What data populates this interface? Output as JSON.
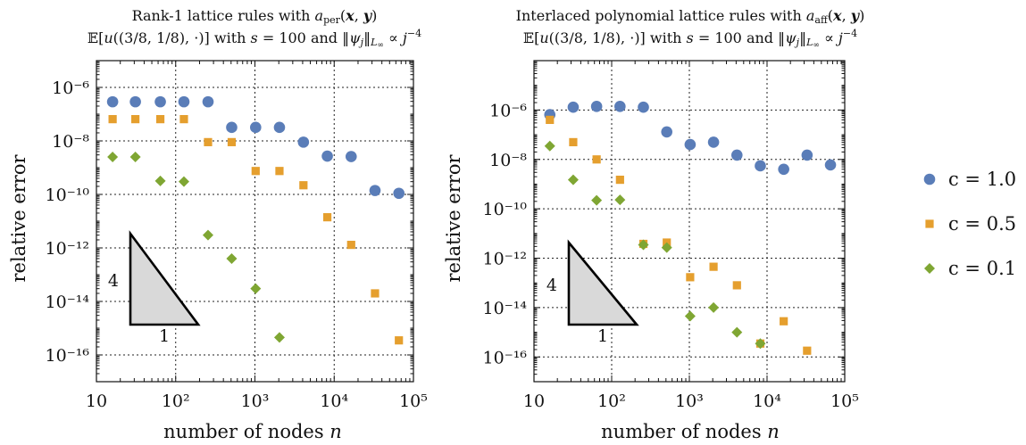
{
  "chart_data": [
    {
      "type": "scatter",
      "title": "Rank-1 lattice rules with a_per(x, y)",
      "subtitle": "E[u((3/8, 1/8), ·)] with s = 100 and ‖ψ_j‖_L∞ ∝ j^-4",
      "xlabel": "number of nodes n",
      "ylabel": "relative error",
      "x_scale": "log",
      "y_scale": "log",
      "xlim": [
        10,
        100000
      ],
      "ylim": [
        1e-17,
        1e-05
      ],
      "x_ticks": [
        10,
        100,
        1000,
        10000,
        100000
      ],
      "x_tick_labels": [
        "10",
        "10²",
        "10³",
        "10⁴",
        "10⁵"
      ],
      "y_ticks": [
        1e-16,
        1e-14,
        1e-12,
        1e-10,
        1e-08,
        1e-06
      ],
      "y_tick_labels": [
        "10⁻¹⁶",
        "10⁻¹⁴",
        "10⁻¹²",
        "10⁻¹⁰",
        "10⁻⁸",
        "10⁻⁶"
      ],
      "grid": true,
      "slope_triangle": {
        "vertical_label": "4",
        "horizontal_label": "1"
      },
      "series": [
        {
          "name": "c = 1.0",
          "marker": "circle",
          "color": "#5a7db8",
          "x": [
            16,
            31,
            64,
            127,
            256,
            509,
            1021,
            2039,
            4093,
            8191,
            16381,
            32749,
            65521
          ],
          "y": [
            2.9e-07,
            2.9e-07,
            2.9e-07,
            2.9e-07,
            2.9e-07,
            3.2e-08,
            3.2e-08,
            3.2e-08,
            9e-09,
            2.7e-09,
            2.6e-09,
            1.4e-10,
            1.1e-10
          ]
        },
        {
          "name": "c = 0.5",
          "marker": "square",
          "color": "#e59f2e",
          "x": [
            16,
            31,
            64,
            127,
            256,
            509,
            1021,
            2039,
            4093,
            8191,
            16381,
            32749,
            65521
          ],
          "y": [
            6.5e-08,
            6.5e-08,
            6.5e-08,
            6.5e-08,
            9e-09,
            9e-09,
            7.5e-10,
            7.5e-10,
            2.2e-10,
            1.4e-11,
            1.3e-12,
            2e-14,
            3.5e-16
          ]
        },
        {
          "name": "c = 0.1",
          "marker": "diamond",
          "color": "#7fa633",
          "x": [
            16,
            31,
            64,
            127,
            256,
            509,
            1021,
            2039
          ],
          "y": [
            2.5e-09,
            2.5e-09,
            3.2e-10,
            3e-10,
            3e-12,
            4e-13,
            3e-14,
            4.5e-16
          ]
        }
      ]
    },
    {
      "type": "scatter",
      "title": "Interlaced polynomial lattice rules with a_aff(x, y)",
      "subtitle": "E[u((3/8, 1/8), ·)] with s = 100 and ‖ψ_j‖_L∞ ∝ j^-4",
      "xlabel": "number of nodes n",
      "ylabel": "relative error",
      "x_scale": "log",
      "y_scale": "log",
      "xlim": [
        10,
        100000
      ],
      "ylim": [
        1e-17,
        0.0001
      ],
      "x_ticks": [
        10,
        100,
        1000,
        10000,
        100000
      ],
      "x_tick_labels": [
        "10",
        "10²",
        "10³",
        "10⁴",
        "10⁵"
      ],
      "y_ticks": [
        1e-16,
        1e-14,
        1e-12,
        1e-10,
        1e-08,
        1e-06
      ],
      "y_tick_labels": [
        "10⁻¹⁶",
        "10⁻¹⁴",
        "10⁻¹²",
        "10⁻¹⁰",
        "10⁻⁸",
        "10⁻⁶"
      ],
      "grid": true,
      "slope_triangle": {
        "vertical_label": "4",
        "horizontal_label": "1"
      },
      "series": [
        {
          "name": "c = 1.0",
          "marker": "circle",
          "color": "#5a7db8",
          "x": [
            16,
            32,
            64,
            128,
            256,
            512,
            1024,
            2048,
            4096,
            8192,
            16384,
            32768,
            65536
          ],
          "y": [
            6.5e-07,
            1.3e-06,
            1.4e-06,
            1.4e-06,
            1.3e-06,
            1.3e-07,
            4e-08,
            5e-08,
            1.5e-08,
            5.5e-09,
            4e-09,
            1.5e-08,
            6e-09
          ]
        },
        {
          "name": "c = 0.5",
          "marker": "square",
          "color": "#e59f2e",
          "x": [
            16,
            32,
            64,
            128,
            256,
            512,
            1024,
            2048,
            4096,
            8192,
            16384,
            32768
          ],
          "y": [
            4e-07,
            5e-08,
            1e-08,
            1.5e-09,
            3.8e-12,
            4.3e-12,
            1.7e-13,
            4.5e-13,
            8e-14,
            3.5e-16,
            2.8e-15,
            1.8e-16
          ]
        },
        {
          "name": "c = 0.1",
          "marker": "diamond",
          "color": "#7fa633",
          "x": [
            16,
            32,
            64,
            128,
            256,
            512,
            1024,
            2048,
            4096,
            8192
          ],
          "y": [
            3.5e-08,
            1.5e-09,
            2.2e-10,
            2.3e-10,
            3.5e-12,
            2.7e-12,
            4.5e-15,
            1e-14,
            1e-15,
            3.5e-16
          ]
        }
      ]
    }
  ],
  "legend": {
    "placement": "right",
    "items": [
      {
        "label": "c = 1.0",
        "marker": "circle",
        "color": "#5a7db8"
      },
      {
        "label": "c = 0.5",
        "marker": "square",
        "color": "#e59f2e"
      },
      {
        "label": "c = 0.1",
        "marker": "diamond",
        "color": "#7fa633"
      }
    ]
  }
}
